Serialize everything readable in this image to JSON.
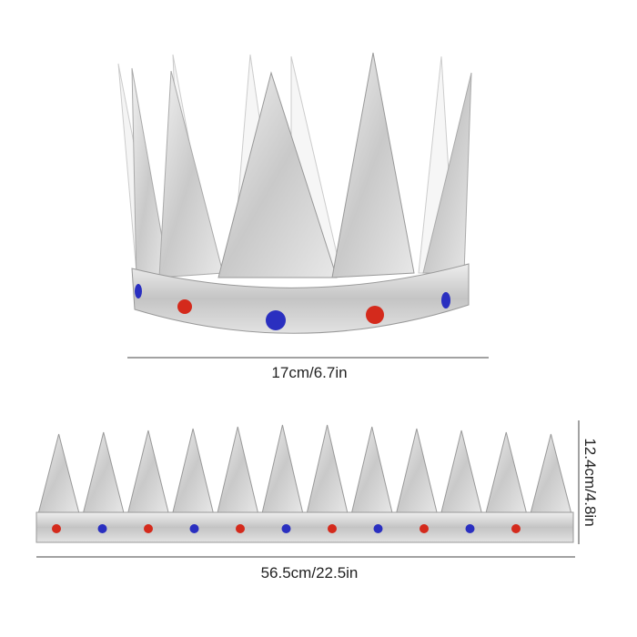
{
  "product": "crown",
  "dimensions": {
    "diameter": "17cm/6.7in",
    "length": "56.5cm/22.5in",
    "height": "12.4cm/4.8in"
  },
  "colors": {
    "silver": "#d9d9d9",
    "silver_dark": "#a8a8a8",
    "gem_red": "#d42a1c",
    "gem_blue": "#2a2fc0"
  }
}
